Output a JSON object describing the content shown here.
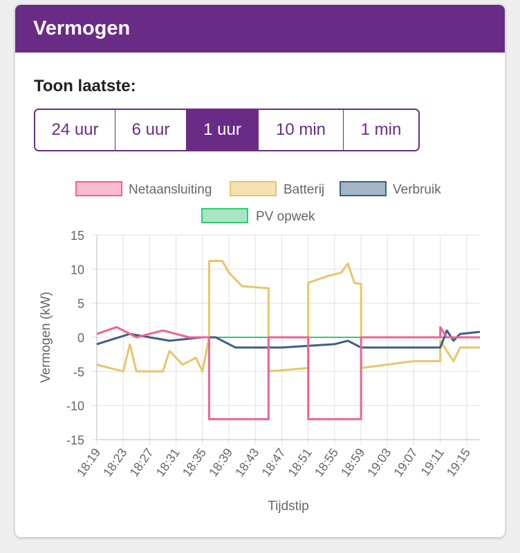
{
  "header": {
    "title": "Vermogen"
  },
  "range_selector": {
    "label": "Toon laatste:",
    "options": [
      "24 uur",
      "6 uur",
      "1 uur",
      "10 min",
      "1 min"
    ],
    "selected": "1 uur"
  },
  "chart_data": {
    "type": "line",
    "xlabel": "Tijdstip",
    "ylabel": "Vermogen (kW)",
    "ylim": [
      -15,
      15
    ],
    "yticks": [
      15,
      10,
      5,
      0,
      -5,
      -10,
      -15
    ],
    "xticks": [
      "18:19",
      "18:23",
      "18:27",
      "18:31",
      "18:35",
      "18:39",
      "18:43",
      "18:47",
      "18:51",
      "18:55",
      "18:59",
      "19:03",
      "19:07",
      "19:11",
      "19:15"
    ],
    "xrange": [
      "18:19",
      "19:17"
    ],
    "grid": true,
    "legend_position": "top",
    "series": [
      {
        "name": "Netaansluiting",
        "color": "#f06292",
        "points": [
          [
            "18:19",
            0.5
          ],
          [
            "18:22",
            1.5
          ],
          [
            "18:25",
            0
          ],
          [
            "18:29",
            1
          ],
          [
            "18:33",
            0
          ],
          [
            "18:36",
            0
          ],
          [
            "18:36",
            -12
          ],
          [
            "18:45",
            -12
          ],
          [
            "18:45",
            0
          ],
          [
            "18:51",
            0
          ],
          [
            "18:51",
            -12
          ],
          [
            "18:59",
            -12
          ],
          [
            "18:59",
            0
          ],
          [
            "19:11",
            0
          ],
          [
            "19:11",
            1.5
          ],
          [
            "19:12",
            0
          ],
          [
            "19:17",
            0
          ]
        ]
      },
      {
        "name": "Batterij",
        "color": "#e8c56a",
        "points": [
          [
            "18:19",
            -4
          ],
          [
            "18:23",
            -5
          ],
          [
            "18:24",
            -1
          ],
          [
            "18:25",
            -5
          ],
          [
            "18:29",
            -5
          ],
          [
            "18:30",
            -2
          ],
          [
            "18:32",
            -4
          ],
          [
            "18:34",
            -3
          ],
          [
            "18:35",
            -5
          ],
          [
            "18:36",
            0
          ],
          [
            "18:36",
            11.2
          ],
          [
            "18:38",
            11.2
          ],
          [
            "18:39",
            9.5
          ],
          [
            "18:41",
            7.5
          ],
          [
            "18:45",
            7.2
          ],
          [
            "18:45",
            -5
          ],
          [
            "18:51",
            -4.5
          ],
          [
            "18:51",
            8
          ],
          [
            "18:54",
            9
          ],
          [
            "18:56",
            9.5
          ],
          [
            "18:57",
            10.8
          ],
          [
            "18:58",
            8
          ],
          [
            "18:59",
            7.8
          ],
          [
            "18:59",
            -4.5
          ],
          [
            "19:07",
            -3.5
          ],
          [
            "19:11",
            -3.5
          ],
          [
            "19:11",
            -0.5
          ],
          [
            "19:13",
            -3.5
          ],
          [
            "19:14",
            -1.5
          ],
          [
            "19:17",
            -1.5
          ]
        ]
      },
      {
        "name": "Verbruik",
        "color": "#3c5f82",
        "points": [
          [
            "18:19",
            -1
          ],
          [
            "18:24",
            0.5
          ],
          [
            "18:30",
            -0.5
          ],
          [
            "18:35",
            0
          ],
          [
            "18:37",
            0
          ],
          [
            "18:40",
            -1.5
          ],
          [
            "18:47",
            -1.5
          ],
          [
            "18:55",
            -1
          ],
          [
            "18:57",
            -0.5
          ],
          [
            "18:59",
            -1.5
          ],
          [
            "19:11",
            -1.5
          ],
          [
            "19:12",
            1
          ],
          [
            "19:13",
            -0.5
          ],
          [
            "19:14",
            0.5
          ],
          [
            "19:17",
            0.8
          ]
        ]
      },
      {
        "name": "PV opwek",
        "color": "#2ecc71",
        "points": [
          [
            "18:36",
            0
          ],
          [
            "19:12",
            0
          ]
        ]
      }
    ]
  }
}
